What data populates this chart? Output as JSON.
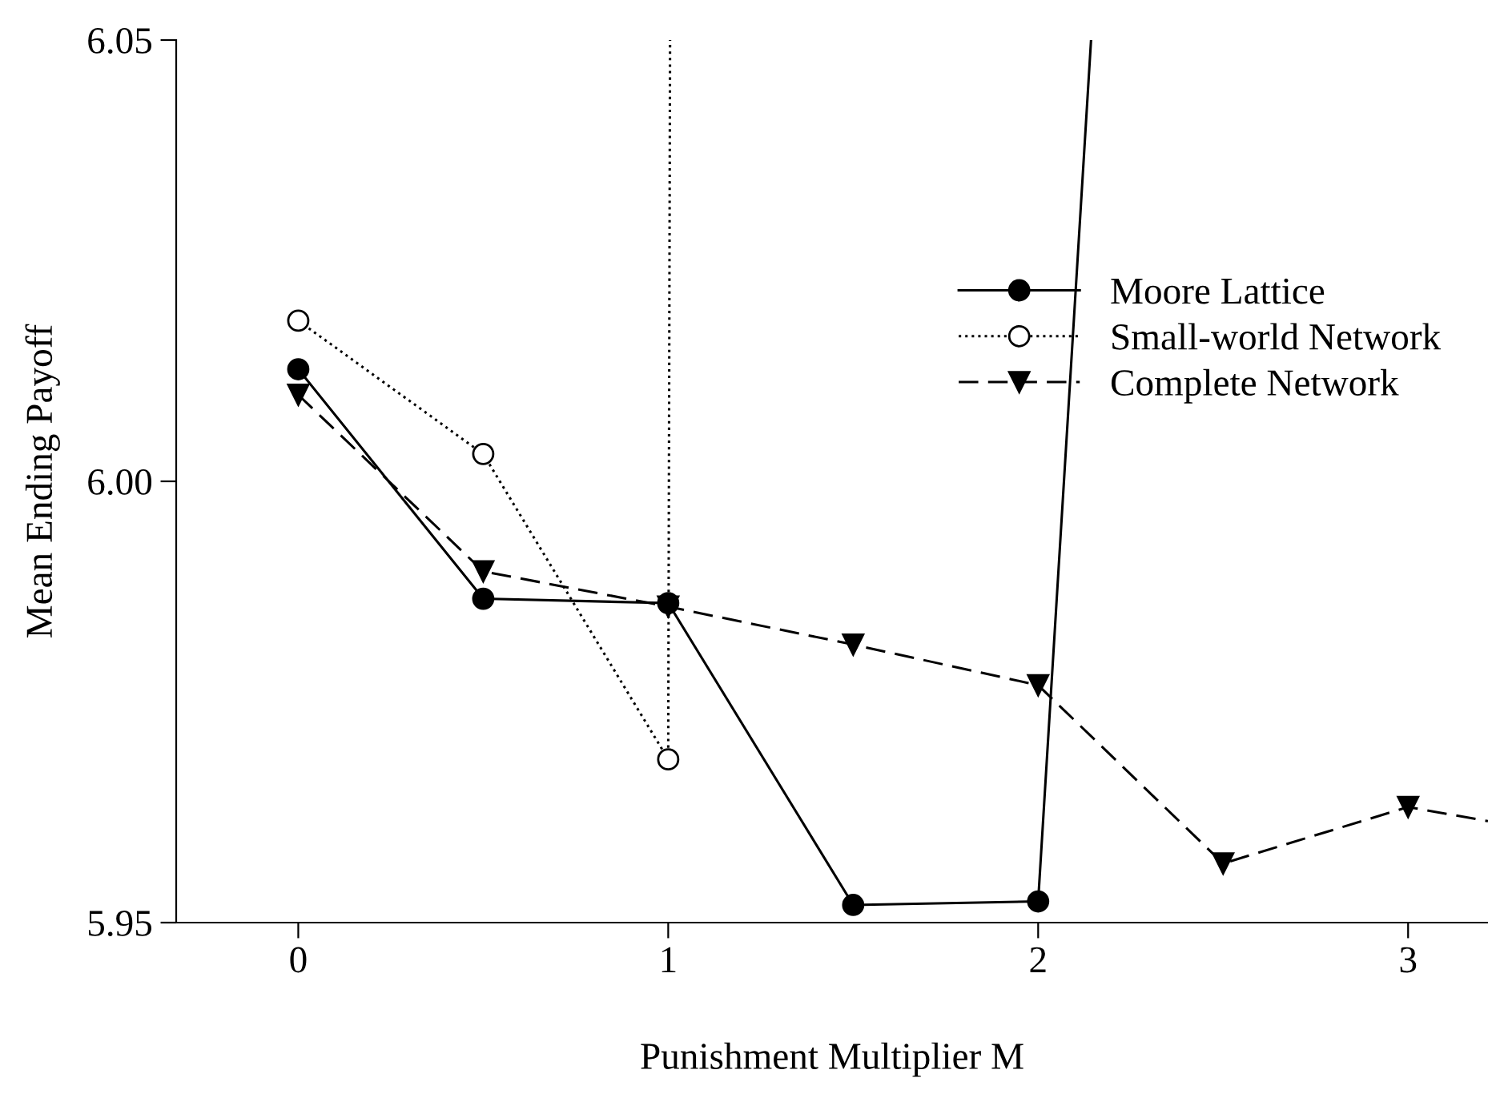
{
  "chart_data": {
    "type": "line",
    "xlabel": "Punishment Multiplier M",
    "ylabel": "Mean Ending Payoff",
    "xlim": [
      -0.33,
      3.216
    ],
    "xticks": [
      0,
      1,
      2,
      3
    ],
    "ylim": [
      5.95,
      6.05
    ],
    "yticks": [
      {
        "value": 5.95,
        "label": "5.95"
      },
      {
        "value": 6.0,
        "label": "6.00"
      },
      {
        "value": 6.05,
        "label": "6.05"
      }
    ],
    "grid": false,
    "legend": "top right",
    "series": [
      {
        "name": "Moore Lattice",
        "color": "#000000",
        "marker": "circle",
        "line_style": "solid",
        "x": [
          0,
          0.5,
          1,
          1.5,
          2,
          2.143
        ],
        "values": [
          6.0127,
          5.9867,
          5.9862,
          5.952,
          5.9524,
          6.05
        ]
      },
      {
        "name": "Small-world Network",
        "color": "#000000",
        "marker": "circle",
        "line_style": "dotted",
        "x": [
          0,
          0.5,
          1,
          1.005
        ],
        "values": [
          6.0182,
          6.0031,
          5.9685,
          6.05
        ]
      },
      {
        "name": "Complete Network",
        "color": "#000000",
        "marker": "triangle",
        "line_style": "dashed",
        "x": [
          0,
          0.5,
          1,
          1.5,
          2,
          2.5,
          3,
          3.216
        ],
        "values": [
          6.0098,
          5.9898,
          5.9858,
          5.9815,
          5.9769,
          5.9567,
          5.9631,
          5.9615
        ]
      }
    ]
  }
}
